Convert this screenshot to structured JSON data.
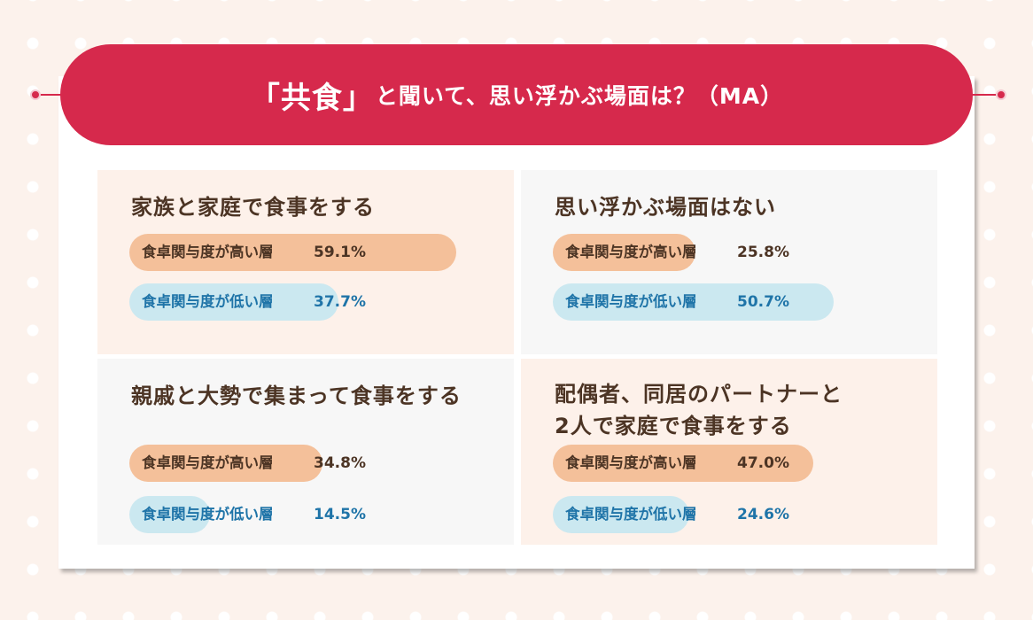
{
  "title": {
    "main": "「共食」",
    "rest": "と聞いて、思い浮かぶ場面は？（MA）"
  },
  "colors": {
    "title_bar": "#d6294c",
    "high_bar": "#f4c09a",
    "low_bar": "#cbe8f0",
    "text_brown": "#4c3424",
    "text_blue": "#1f74a8"
  },
  "chart_data": {
    "type": "bar",
    "title": "「共食」と聞いて、思い浮かぶ場面は？（MA）",
    "unit": "%",
    "series_names": [
      "食卓関与度が高い層",
      "食卓関与度が低い層"
    ],
    "panels": [
      {
        "label": "家族と家庭で食事をする",
        "rows": [
          {
            "series": "食卓関与度が高い層",
            "value": 59.1,
            "display": "59.1%",
            "kind": "high"
          },
          {
            "series": "食卓関与度が低い層",
            "value": 37.7,
            "display": "37.7%",
            "kind": "low"
          }
        ]
      },
      {
        "label": "思い浮かぶ場面はない",
        "rows": [
          {
            "series": "食卓関与度が高い層",
            "value": 25.8,
            "display": "25.8%",
            "kind": "high"
          },
          {
            "series": "食卓関与度が低い層",
            "value": 50.7,
            "display": "50.7%",
            "kind": "low"
          }
        ]
      },
      {
        "label": "親戚と大勢で集まって食事をする",
        "rows": [
          {
            "series": "食卓関与度が高い層",
            "value": 34.8,
            "display": "34.8%",
            "kind": "high"
          },
          {
            "series": "食卓関与度が低い層",
            "value": 14.5,
            "display": "14.5%",
            "kind": "low"
          }
        ]
      },
      {
        "label": "配偶者、同居のパートナーと\n2人で家庭で食事をする",
        "rows": [
          {
            "series": "食卓関与度が高い層",
            "value": 47.0,
            "display": "47.0%",
            "kind": "high"
          },
          {
            "series": "食卓関与度が低い層",
            "value": 24.6,
            "display": "24.6%",
            "kind": "low"
          }
        ]
      }
    ]
  }
}
